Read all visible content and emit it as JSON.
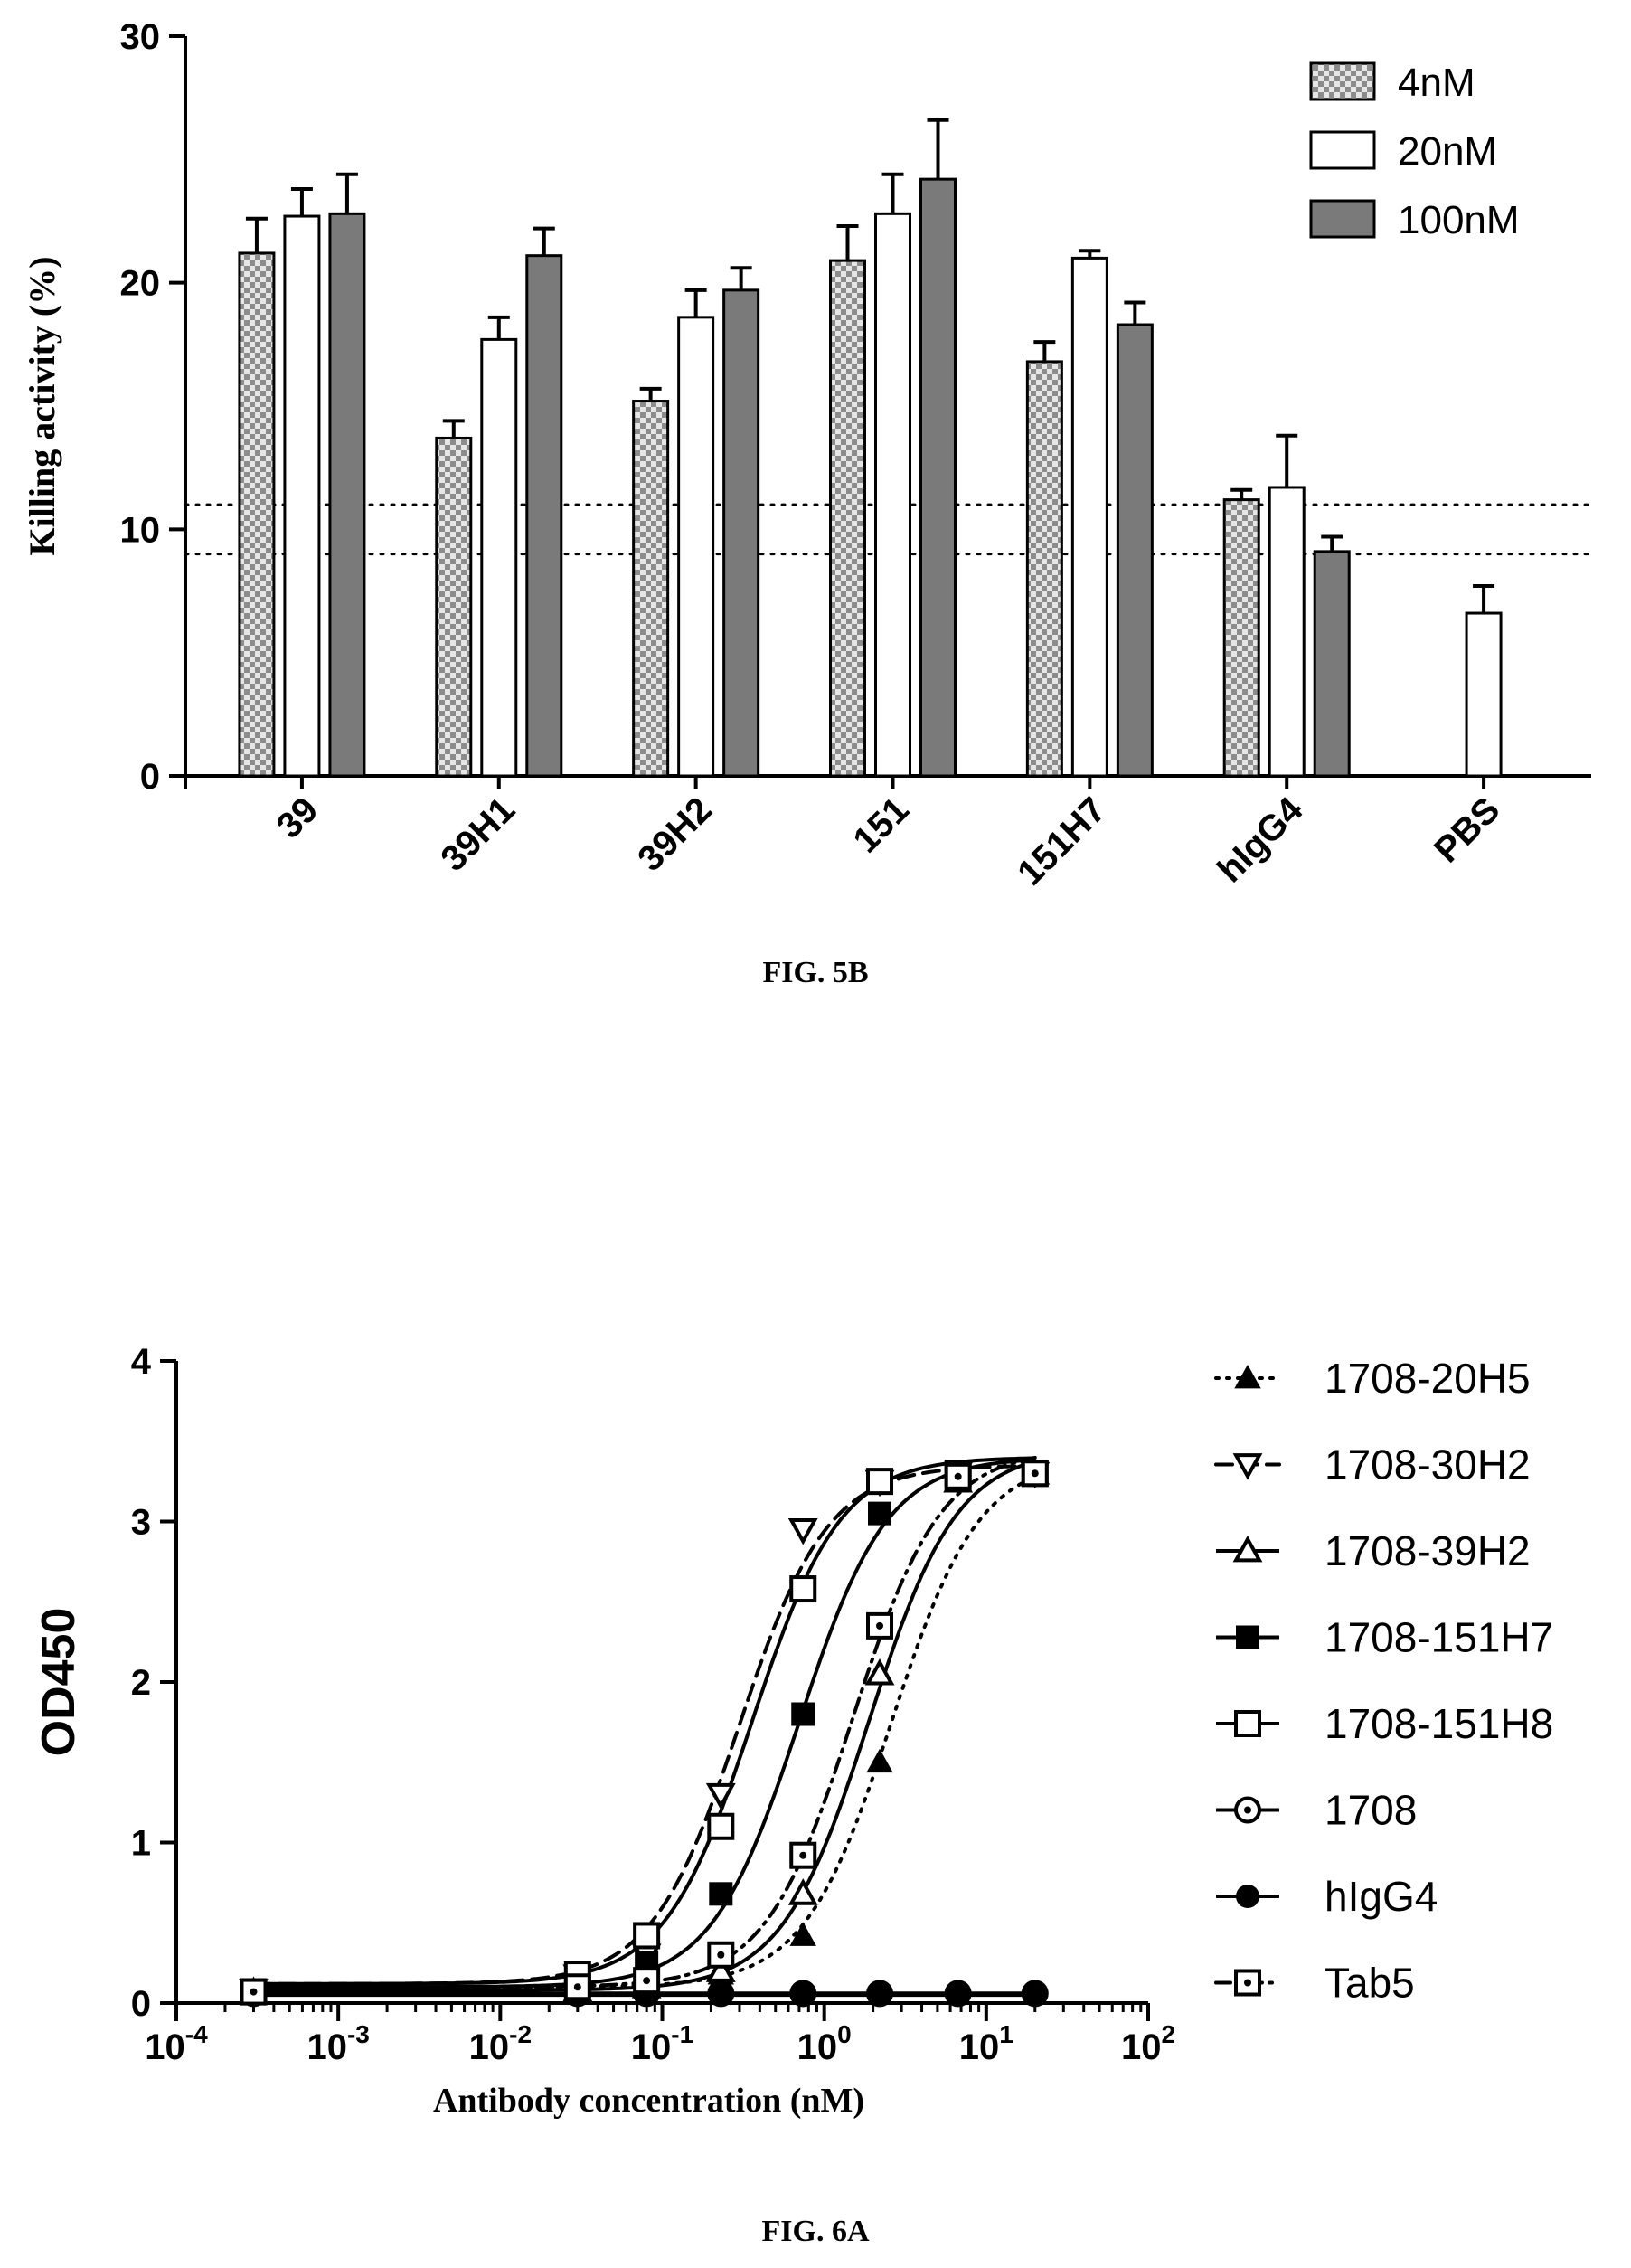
{
  "chart_data": [
    {
      "type": "bar",
      "figure_label": "FIG. 5B",
      "ylabel": "Killing activity (%)",
      "ylim": [
        0,
        30
      ],
      "yticks": [
        "0",
        "10",
        "20",
        "30"
      ],
      "categories": [
        "39",
        "39H1",
        "39H2",
        "151",
        "151H7",
        "hIgG4",
        "PBS"
      ],
      "series": [
        {
          "name": "4nM",
          "pattern": "checker",
          "values": [
            21.2,
            13.7,
            15.2,
            20.9,
            16.8,
            11.2,
            null
          ],
          "errors": [
            1.4,
            0.7,
            0.5,
            1.4,
            0.8,
            0.4,
            null
          ]
        },
        {
          "name": "20nM",
          "pattern": "white",
          "values": [
            22.7,
            17.7,
            18.6,
            22.8,
            21.0,
            11.7,
            6.6
          ],
          "errors": [
            1.1,
            0.9,
            1.1,
            1.6,
            0.3,
            2.1,
            1.1
          ]
        },
        {
          "name": "100nM",
          "pattern": "gray",
          "values": [
            22.8,
            21.1,
            19.7,
            24.2,
            18.3,
            9.1,
            null
          ],
          "errors": [
            1.6,
            1.1,
            0.9,
            2.4,
            0.9,
            0.6,
            null
          ]
        }
      ],
      "reference_lines": [
        9,
        11
      ],
      "legend_position": "top-right",
      "colors": {
        "gray_bar": "#7a7a7a",
        "checker_dark": "#8c8c8c",
        "checker_light": "#e6e6e6"
      }
    },
    {
      "type": "line",
      "figure_label": "FIG. 6A",
      "xlabel": "Antibody concentration (nM)",
      "ylabel": "OD450",
      "xscale": "log",
      "xlim": [
        0.0001,
        100
      ],
      "ylim": [
        0,
        4
      ],
      "yticks": [
        "0",
        "1",
        "2",
        "3",
        "4"
      ],
      "xticks": [
        {
          "base": "10",
          "exp": "-4"
        },
        {
          "base": "10",
          "exp": "-3"
        },
        {
          "base": "10",
          "exp": "-2"
        },
        {
          "base": "10",
          "exp": "-1"
        },
        {
          "base": "10",
          "exp": "0"
        },
        {
          "base": "10",
          "exp": "1"
        },
        {
          "base": "10",
          "exp": "2"
        }
      ],
      "legend_position": "right",
      "series": [
        {
          "name": "1708-20H5",
          "marker": "triangle-filled",
          "line": "dotted",
          "ec50": 2.6,
          "top": 3.4,
          "bottom": 0.1,
          "x": [
            0.0003,
            0.03,
            0.08,
            0.23,
            0.74,
            2.2,
            6.7,
            20
          ],
          "y": [
            0.07,
            0.08,
            0.1,
            0.18,
            0.42,
            1.5,
            3.25,
            3.3
          ]
        },
        {
          "name": "1708-30H2",
          "marker": "triangle-down-open",
          "line": "dashed",
          "ec50": 0.3,
          "top": 3.35,
          "bottom": 0.12,
          "x": [
            0.0003,
            0.03,
            0.08,
            0.23,
            0.74,
            2.2,
            6.7,
            20
          ],
          "y": [
            0.08,
            0.17,
            0.3,
            1.3,
            2.95,
            3.25,
            3.3,
            3.3
          ]
        },
        {
          "name": "1708-39H2",
          "marker": "triangle-open",
          "line": "solid",
          "ec50": 1.9,
          "top": 3.45,
          "bottom": 0.08,
          "x": [
            0.0003,
            0.03,
            0.08,
            0.23,
            0.74,
            2.2,
            6.7,
            20
          ],
          "y": [
            0.07,
            0.08,
            0.1,
            0.2,
            0.68,
            2.05,
            3.25,
            3.3
          ]
        },
        {
          "name": "1708-151H7",
          "marker": "square-filled",
          "line": "solid",
          "ec50": 0.7,
          "top": 3.4,
          "bottom": 0.1,
          "x": [
            0.0003,
            0.03,
            0.08,
            0.23,
            0.74,
            2.2,
            6.7,
            20
          ],
          "y": [
            0.07,
            0.12,
            0.25,
            0.68,
            1.8,
            3.05,
            3.3,
            3.3
          ]
        },
        {
          "name": "1708-151H8",
          "marker": "square-open",
          "line": "solid",
          "ec50": 0.36,
          "top": 3.4,
          "bottom": 0.12,
          "x": [
            0.0003,
            0.03,
            0.08,
            0.23,
            0.74,
            2.2,
            6.7,
            20
          ],
          "y": [
            0.07,
            0.18,
            0.42,
            1.1,
            2.58,
            3.25,
            3.3,
            3.3
          ]
        },
        {
          "name": "1708",
          "marker": "circle-dot",
          "line": "solid",
          "flat": 0.06,
          "x": [
            0.0003,
            0.03,
            0.08,
            0.23,
            0.74,
            2.2,
            6.7,
            20
          ],
          "y": [
            0.06,
            0.06,
            0.06,
            0.06,
            0.06,
            0.06,
            0.06,
            0.06
          ]
        },
        {
          "name": "hIgG4",
          "marker": "circle-filled",
          "line": "solid",
          "flat": 0.05,
          "x": [
            0.0003,
            0.03,
            0.08,
            0.23,
            0.74,
            2.2,
            6.7,
            20
          ],
          "y": [
            0.05,
            0.05,
            0.05,
            0.05,
            0.05,
            0.05,
            0.05,
            0.05
          ]
        },
        {
          "name": "Tab5",
          "marker": "square-dot",
          "line": "dashdot",
          "ec50": 1.5,
          "top": 3.45,
          "bottom": 0.1,
          "x": [
            0.0003,
            0.03,
            0.08,
            0.23,
            0.74,
            2.2,
            6.7,
            20
          ],
          "y": [
            0.07,
            0.1,
            0.14,
            0.3,
            0.92,
            2.35,
            3.28,
            3.3
          ]
        }
      ]
    }
  ]
}
